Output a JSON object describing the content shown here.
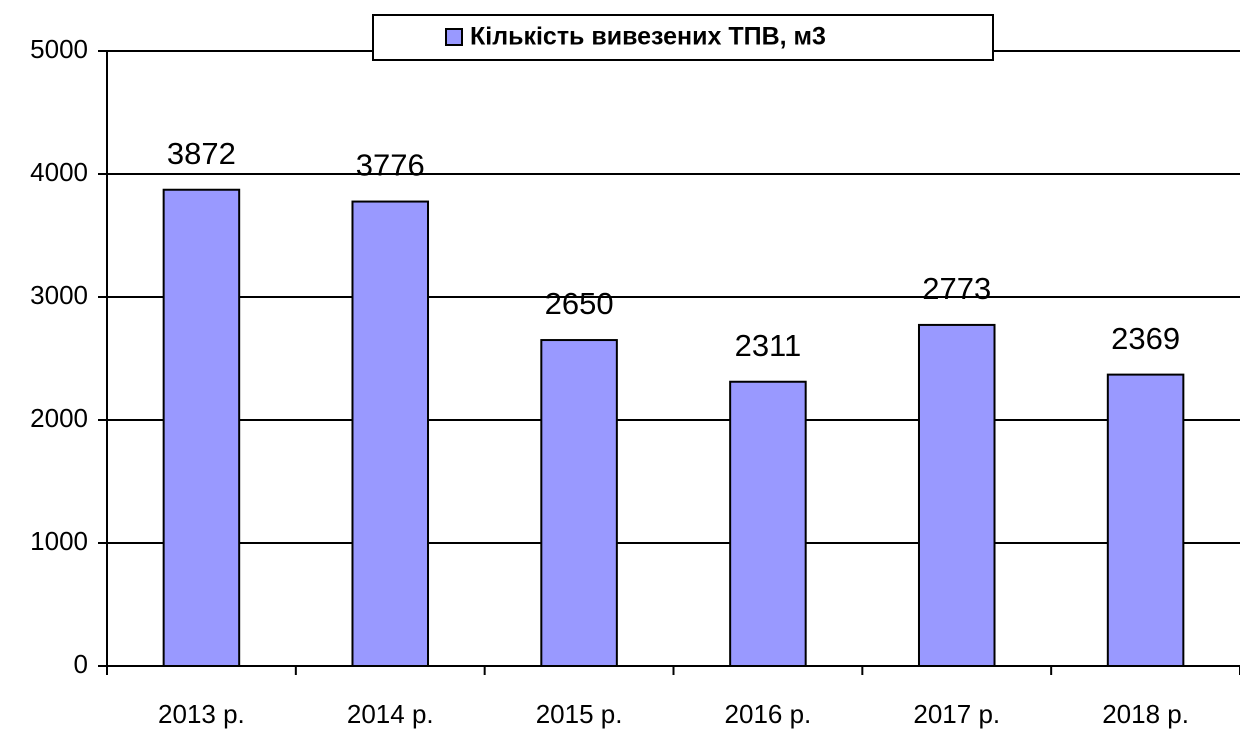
{
  "chart_data": {
    "type": "bar",
    "categories": [
      "2013 р.",
      "2014 р.",
      "2015 р.",
      "2016 р.",
      "2017 р.",
      "2018 р."
    ],
    "series": [
      {
        "name": "Кількість вивезених ТПВ, м3",
        "color": "#9999ff",
        "values": [
          3872,
          3776,
          2650,
          2311,
          2773,
          2369
        ]
      }
    ],
    "ylim": [
      0,
      5000
    ],
    "yticks": [
      0,
      1000,
      2000,
      3000,
      4000,
      5000
    ],
    "grid": true,
    "legend": "top"
  }
}
